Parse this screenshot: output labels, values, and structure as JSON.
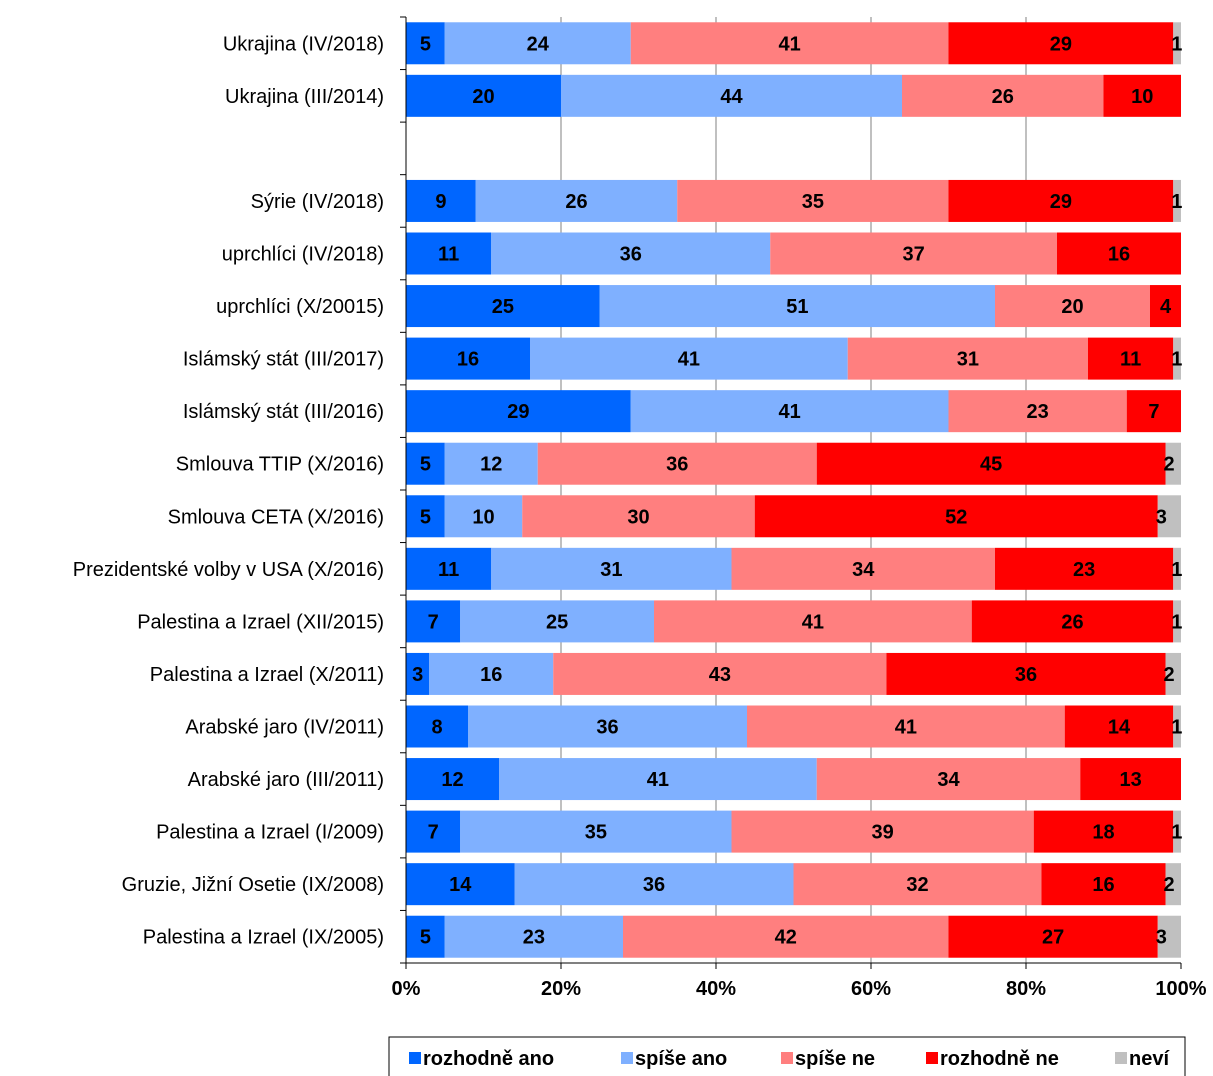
{
  "chart_data": {
    "type": "bar",
    "orientation": "horizontal",
    "stacked": true,
    "percent": true,
    "grid": true,
    "legend_position": "bottom",
    "xlim": [
      0,
      100
    ],
    "x_ticks": [
      "0%",
      "20%",
      "40%",
      "60%",
      "80%",
      "100%"
    ],
    "categories": [
      "Ukrajina (IV/2018)",
      "Ukrajina (III/2014)",
      "",
      "Sýrie (IV/2018)",
      "uprchlíci (IV/2018)",
      "uprchlíci (X/20015)",
      "Islámský stát (III/2017)",
      "Islámský stát (III/2016)",
      "Smlouva TTIP (X/2016)",
      "Smlouva CETA (X/2016)",
      "Prezidentské volby v USA (X/2016)",
      "Palestina a Izrael (XII/2015)",
      "Palestina a Izrael (X/2011)",
      "Arabské jaro (IV/2011)",
      "Arabské jaro (III/2011)",
      "Palestina a Izrael (I/2009)",
      "Gruzie, Jižní Osetie (IX/2008)",
      "Palestina a Izrael (IX/2005)"
    ],
    "series": [
      {
        "name": "rozhodně ano",
        "color": "#0066ff",
        "values": [
          5,
          20,
          null,
          9,
          11,
          25,
          16,
          29,
          5,
          5,
          11,
          7,
          3,
          8,
          12,
          7,
          14,
          5
        ]
      },
      {
        "name": "spíše ano",
        "color": "#7fb0ff",
        "values": [
          24,
          44,
          null,
          26,
          36,
          51,
          41,
          41,
          12,
          10,
          31,
          25,
          16,
          36,
          41,
          35,
          36,
          23
        ]
      },
      {
        "name": "spíše ne",
        "color": "#ff7f7f",
        "values": [
          41,
          26,
          null,
          35,
          37,
          20,
          31,
          23,
          36,
          30,
          34,
          41,
          43,
          41,
          34,
          39,
          32,
          42
        ]
      },
      {
        "name": "rozhodně ne",
        "color": "#ff0000",
        "values": [
          29,
          10,
          null,
          29,
          16,
          4,
          11,
          7,
          45,
          52,
          23,
          26,
          36,
          14,
          13,
          18,
          16,
          27
        ]
      },
      {
        "name": "neví",
        "color": "#c0c0c0",
        "values": [
          1,
          0,
          null,
          1,
          0,
          0,
          1,
          0,
          2,
          3,
          1,
          1,
          2,
          1,
          0,
          1,
          2,
          3
        ]
      }
    ]
  }
}
